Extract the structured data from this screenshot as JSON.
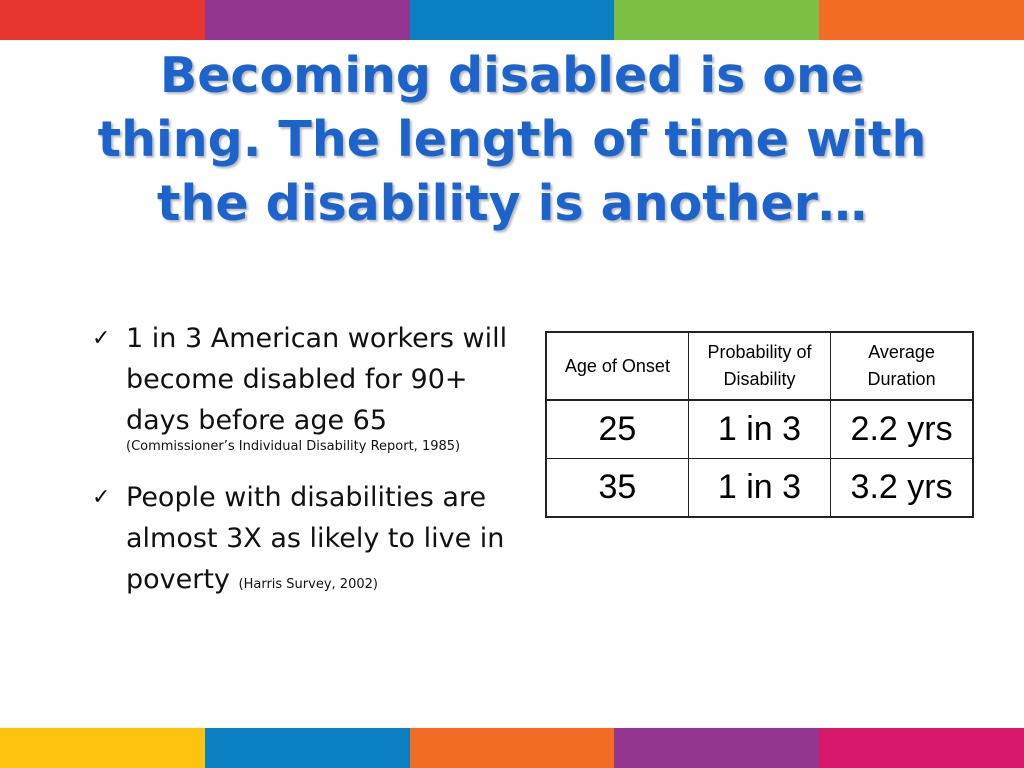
{
  "colors": {
    "title": "#1c63cc",
    "top_stripes": [
      "#e8352f",
      "#93368f",
      "#0a7fc2",
      "#7cc043",
      "#f26c23"
    ],
    "bottom_stripes": [
      "#fdc30f",
      "#0a7fc2",
      "#f26c23",
      "#93368f",
      "#d6176a"
    ]
  },
  "slide": {
    "title": "Becoming disabled is one thing. The length of time with the disability is another…",
    "bullets": [
      {
        "icon": "checkmark-icon",
        "check": "✓",
        "text": "1 in 3 American workers will become disabled for 90+ days before age 65",
        "source": "(Commissioner’s Individual Disability Report, 1985)"
      },
      {
        "icon": "checkmark-icon",
        "check": "✓",
        "text": "People with disabilities are almost 3X as likely to live in poverty",
        "source": "(Harris Survey, 2002)"
      }
    ],
    "table": {
      "headers": [
        "Age of Onset",
        "Probability of Disability",
        "Average Duration"
      ],
      "rows": [
        [
          "25",
          "1 in 3",
          "2.2 yrs"
        ],
        [
          "35",
          "1 in 3",
          "3.2 yrs"
        ]
      ]
    }
  }
}
